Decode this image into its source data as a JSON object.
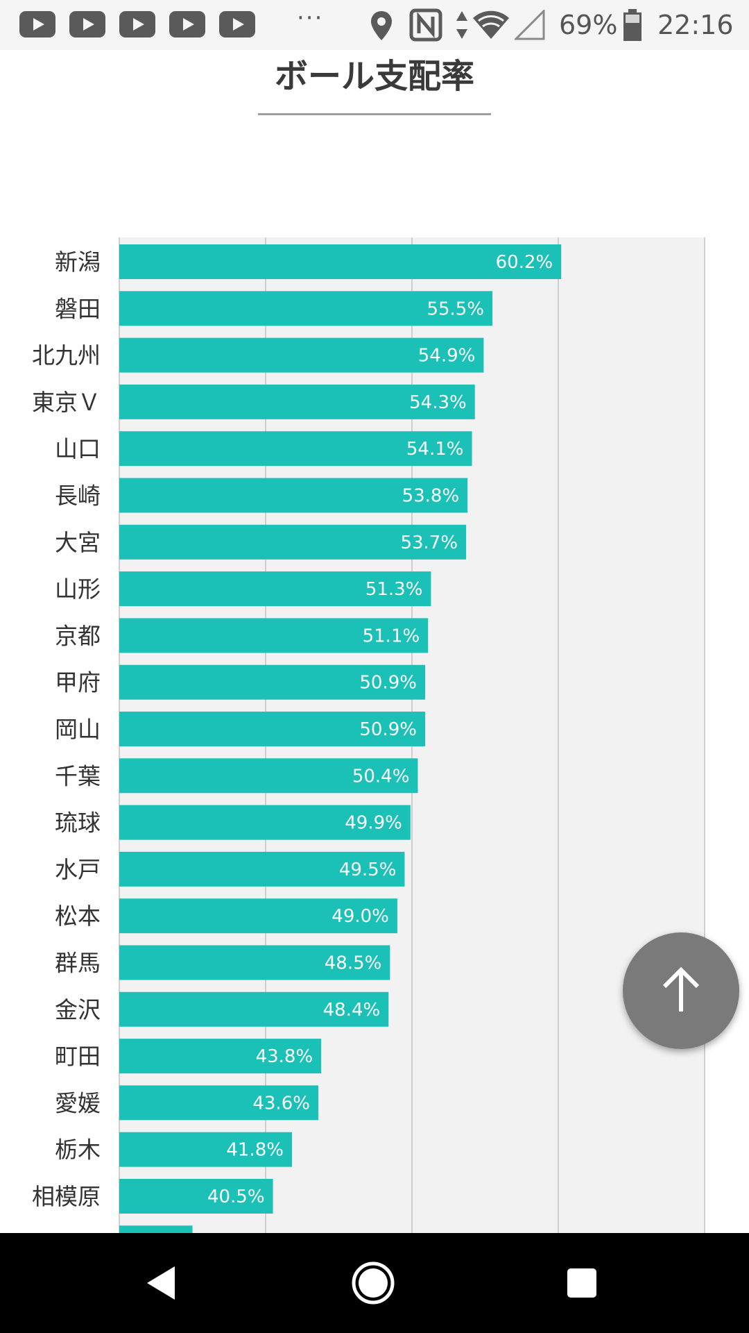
{
  "status_bar": {
    "notification_icons": [
      "youtube-icon",
      "youtube-icon",
      "youtube-icon",
      "youtube-icon",
      "youtube-icon"
    ],
    "overflow": "···",
    "battery_percent": "69%",
    "time": "22:16"
  },
  "page": {
    "title": "ボール支配率"
  },
  "chart_data": {
    "type": "bar",
    "orientation": "horizontal",
    "categories": [
      "新潟",
      "磐田",
      "北九州",
      "東京Ｖ",
      "山口",
      "長崎",
      "大宮",
      "山形",
      "京都",
      "甲府",
      "岡山",
      "千葉",
      "琉球",
      "水戸",
      "松本",
      "群馬",
      "金沢",
      "町田",
      "愛媛",
      "栃木",
      "相模原"
    ],
    "values": [
      60.2,
      55.5,
      54.9,
      54.3,
      54.1,
      53.8,
      53.7,
      51.3,
      51.1,
      50.9,
      50.9,
      50.4,
      49.9,
      49.5,
      49.0,
      48.5,
      48.4,
      43.8,
      43.6,
      41.8,
      40.5
    ],
    "labels": [
      "60.2%",
      "55.5%",
      "54.9%",
      "54.3%",
      "54.1%",
      "53.8%",
      "53.7%",
      "51.3%",
      "51.1%",
      "50.9%",
      "50.9%",
      "50.4%",
      "49.9%",
      "49.5%",
      "49.0%",
      "48.5%",
      "48.4%",
      "43.8%",
      "43.6%",
      "41.8%",
      "40.5%"
    ],
    "partially_visible_value": 35.0,
    "xlim": [
      30,
      70
    ],
    "gridlines": [
      40,
      50,
      60,
      70
    ],
    "grid": true,
    "title": "",
    "xlabel": "",
    "ylabel": ""
  },
  "colors": {
    "bar": "#1bc1b6",
    "plot_background": "#f2f2f2",
    "gridline": "#cfcfcf",
    "category_text": "#333333",
    "value_text": "#ffffff"
  },
  "scroll_top": {
    "icon": "arrow-up-icon"
  },
  "nav_bar": {
    "icons": [
      "back-icon",
      "home-icon",
      "recents-icon"
    ]
  }
}
